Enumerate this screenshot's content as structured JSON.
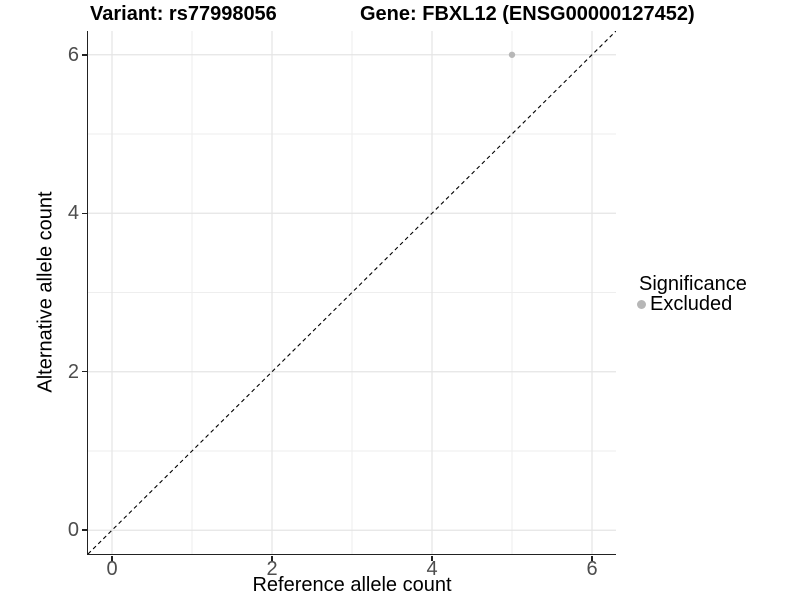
{
  "header": {
    "variant_title": "Variant: rs77998056",
    "gene_title": "Gene: FBXL12 (ENSG00000127452)"
  },
  "chart_data": {
    "type": "scatter",
    "title_left": "Variant: rs77998056",
    "title_right": "Gene: FBXL12 (ENSG00000127452)",
    "xlabel": "Reference allele count",
    "ylabel": "Alternative allele count",
    "xlim": [
      -0.3,
      6.3
    ],
    "ylim": [
      -0.3,
      6.3
    ],
    "x_ticks": [
      0,
      2,
      4,
      6
    ],
    "y_ticks": [
      0,
      2,
      4,
      6
    ],
    "minor_gridlines": [
      1,
      3,
      5
    ],
    "grid": true,
    "series": [
      {
        "name": "Excluded",
        "color": "#b7b7b7",
        "points": [
          {
            "x": 5,
            "y": 6
          }
        ]
      }
    ],
    "reference_line": {
      "style": "dashed",
      "from": [
        -0.3,
        -0.3
      ],
      "to": [
        6.3,
        6.3
      ],
      "color": "#000000"
    },
    "legend": {
      "position": "right",
      "title": "Significance",
      "items": [
        {
          "label": "Excluded",
          "color": "#b7b7b7"
        }
      ]
    }
  },
  "colors": {
    "major_grid": "#e4e4e4",
    "minor_grid": "#eeeeee",
    "axis_line": "#222222",
    "tick_label": "#4d4d4d",
    "point": "#b7b7b7",
    "reference_line": "#000000"
  }
}
